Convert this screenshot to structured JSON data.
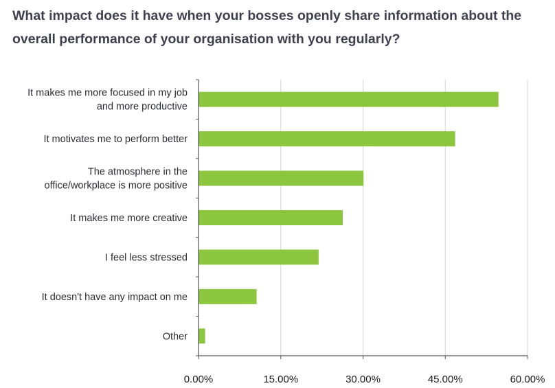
{
  "chart_data": {
    "type": "bar",
    "orientation": "horizontal",
    "title": "What impact does it have when your bosses openly share information about the overall performance of your organisation with you regularly?",
    "categories": [
      [
        "It makes me more focused in my job",
        "and more productive"
      ],
      [
        "It motivates me to perform better"
      ],
      [
        "The atmosphere in the",
        "office/workplace is more positive"
      ],
      [
        "It makes me more creative"
      ],
      [
        "I feel less stressed"
      ],
      [
        "It doesn't have any impact on me"
      ],
      [
        "Other"
      ]
    ],
    "values": [
      54.7,
      46.8,
      30.1,
      26.3,
      21.9,
      10.6,
      1.2
    ],
    "xlim": [
      0,
      60
    ],
    "xticks": [
      0,
      15,
      30,
      45,
      60
    ],
    "xtick_labels": [
      "0.00%",
      "15.00%",
      "30.00%",
      "45.00%",
      "60.00%"
    ],
    "grid": "vertical",
    "bar_color": "#8cc63f",
    "grid_color": "#d4d4d4",
    "axis_color": "#555555"
  }
}
